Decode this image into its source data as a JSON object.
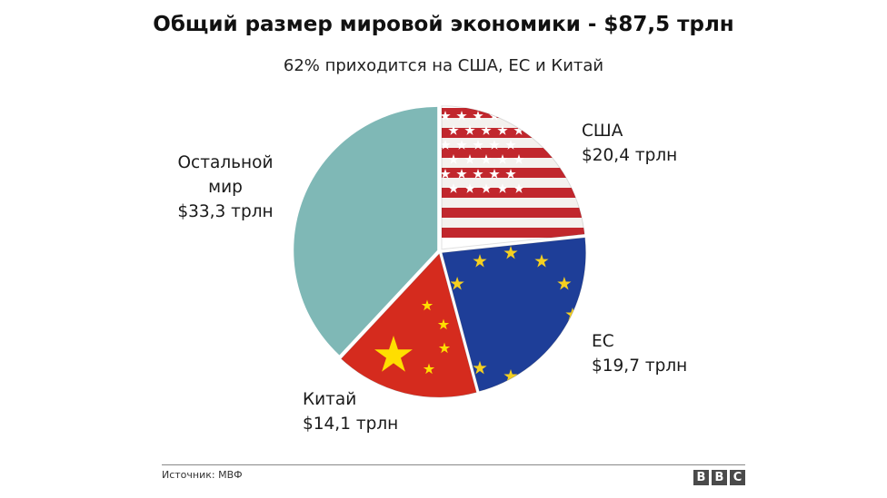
{
  "title": "Общий размер мировой экономики - $87,5 трлн",
  "subtitle": "62% приходится на США, ЕС и Китай",
  "source": "Источник: МВФ",
  "logo": [
    "B",
    "B",
    "C"
  ],
  "chart_data": {
    "type": "pie",
    "title": "Общий размер мировой экономики - $87,5 трлн",
    "subtitle": "62% приходится на США, ЕС и Китай",
    "total": 87.5,
    "unit": "трлн",
    "slices": [
      {
        "name": "США",
        "value": 20.4,
        "value_label": "$20,4 трлн",
        "fill": "flag-usa"
      },
      {
        "name": "ЕС",
        "value": 19.7,
        "value_label": "$19,7 трлн",
        "fill": "flag-eu"
      },
      {
        "name": "Китай",
        "value": 14.1,
        "value_label": "$14,1 трлн",
        "fill": "flag-china"
      },
      {
        "name_lines": [
          "Остальной",
          "мир"
        ],
        "value": 33.3,
        "value_label": "$33,3 трлн",
        "color": "#7fb8b6"
      }
    ]
  }
}
